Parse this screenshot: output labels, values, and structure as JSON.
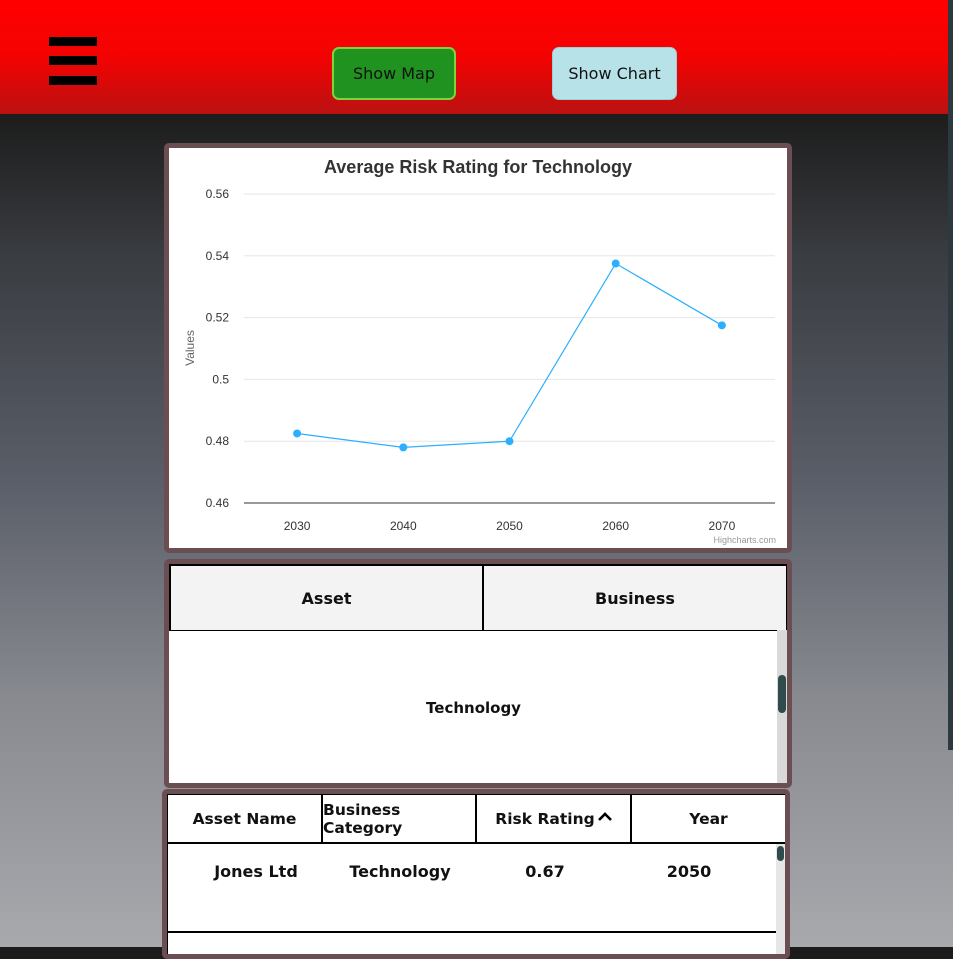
{
  "header": {
    "menu_icon": "hamburger-menu-icon",
    "show_map_label": "Show Map",
    "show_chart_label": "Show Chart",
    "colors": {
      "bar": "#ff0000",
      "map_button": "#1f921f",
      "chart_button": "#b7e2e8"
    }
  },
  "chart_data": {
    "type": "line",
    "title": "Average Risk Rating for Technology",
    "ylabel": "Values",
    "xlabel": "",
    "x": [
      "2030",
      "2040",
      "2050",
      "2060",
      "2070"
    ],
    "series": [
      {
        "values": [
          0.4825,
          0.478,
          0.48,
          0.5375,
          0.5175
        ],
        "color": "#2caffe"
      }
    ],
    "ylim": [
      0.46,
      0.56
    ],
    "yticks": [
      "0.46",
      "0.48",
      "0.5",
      "0.52",
      "0.54",
      "0.56"
    ],
    "grid": true,
    "credits": "Highcharts.com"
  },
  "business_table": {
    "headers": [
      "Asset",
      "Business"
    ],
    "selected": "Technology"
  },
  "assets_table": {
    "headers": [
      "Asset Name",
      "Business Category",
      "Risk Rating",
      "Year"
    ],
    "sort_icon": "caret-up-icon",
    "rows": [
      {
        "name": "Jones Ltd",
        "category": "Technology",
        "rating": "0.67",
        "year": "2050"
      }
    ]
  }
}
